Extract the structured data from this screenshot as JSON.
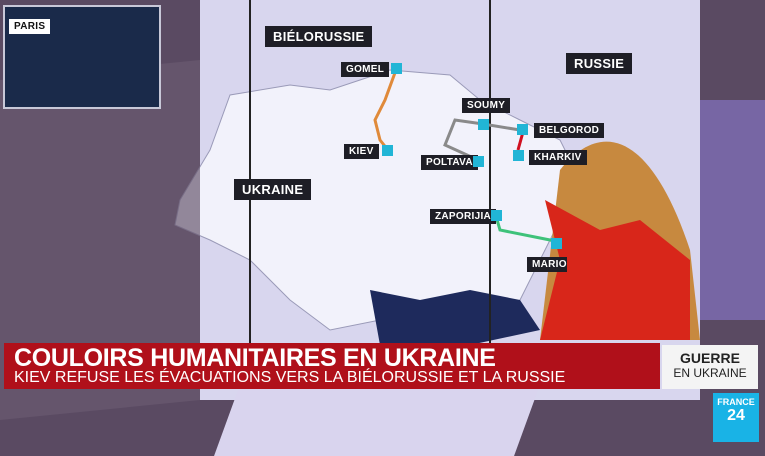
{
  "inset_map": {
    "city": "PARIS"
  },
  "map": {
    "countries": [
      "BIÉLORUSSIE",
      "RUSSIE",
      "UKRAINE"
    ],
    "cities": [
      "GOMEL",
      "KIEV",
      "SOUMY",
      "POLTAVA",
      "BELGOROD",
      "KHARKIV",
      "ZAPORIJIA",
      "MARIOUPOL"
    ]
  },
  "lower_third": {
    "headline": "COULOIRS HUMANITAIRES EN UKRAINE",
    "subheadline": "KIEV REFUSE LES ÉVACUATIONS VERS LA BIÉLORUSSIE ET LA RUSSIE"
  },
  "tag": {
    "line1": "GUERRE",
    "line2": "EN UKRAINE"
  },
  "logo": {
    "line1": "FRANCE",
    "line2": "24"
  },
  "colors": {
    "banner": "#b0101a",
    "route_orange": "#e08a3a",
    "route_grey": "#8a8a8a",
    "route_green": "#3ec27a",
    "route_red": "#d01020",
    "marker": "#21b5d6"
  }
}
